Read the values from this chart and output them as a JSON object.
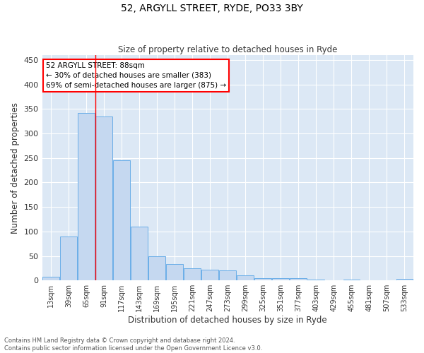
{
  "title1": "52, ARGYLL STREET, RYDE, PO33 3BY",
  "title2": "Size of property relative to detached houses in Ryde",
  "xlabel": "Distribution of detached houses by size in Ryde",
  "ylabel": "Number of detached properties",
  "categories": [
    "13sqm",
    "39sqm",
    "65sqm",
    "91sqm",
    "117sqm",
    "143sqm",
    "169sqm",
    "195sqm",
    "221sqm",
    "247sqm",
    "273sqm",
    "299sqm",
    "325sqm",
    "351sqm",
    "377sqm",
    "403sqm",
    "429sqm",
    "455sqm",
    "481sqm",
    "507sqm",
    "533sqm"
  ],
  "values": [
    7,
    90,
    342,
    335,
    246,
    110,
    50,
    33,
    25,
    22,
    21,
    10,
    5,
    4,
    4,
    2,
    0,
    2,
    0,
    0,
    3
  ],
  "bar_color": "#c5d8f0",
  "bar_edge_color": "#6aaee8",
  "background_color": "#dce8f5",
  "annotation_text": "52 ARGYLL STREET: 88sqm\n← 30% of detached houses are smaller (383)\n69% of semi-detached houses are larger (875) →",
  "annotation_box_color": "white",
  "annotation_box_edge": "red",
  "footer": "Contains HM Land Registry data © Crown copyright and database right 2024.\nContains public sector information licensed under the Open Government Licence v3.0.",
  "ylim": [
    0,
    460
  ],
  "yticks": [
    0,
    50,
    100,
    150,
    200,
    250,
    300,
    350,
    400,
    450
  ],
  "vline_pos": 2.5
}
